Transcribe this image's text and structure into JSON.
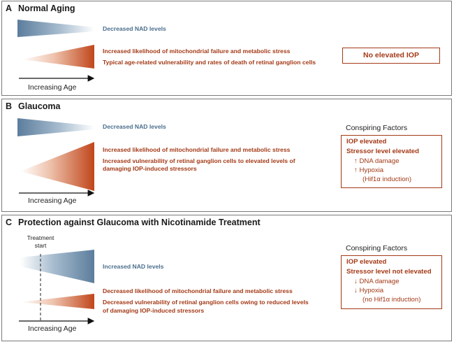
{
  "panels": [
    {
      "letter": "A",
      "title": "Normal Aging",
      "nad_text": "Decreased NAD levels",
      "stress_lines": [
        "Increased likelihood of mitochondrial failure and metabolic stress",
        "Typical age-related vulnerability and rates of death of retinal ganglion cells"
      ],
      "axis_label": "Increasing Age",
      "box_text": "No elevated IOP"
    },
    {
      "letter": "B",
      "title": "Glaucoma",
      "nad_text": "Decreased NAD levels",
      "stress_lines": [
        "Increased likelihood of mitochondrial failure and metabolic stress",
        "Increased vulnerability of retinal ganglion cells to elevated levels of",
        "damaging IOP-induced stressors"
      ],
      "axis_label": "Increasing Age",
      "factors_title": "Conspiring Factors",
      "factors": [
        "IOP elevated",
        "Stressor level elevated",
        "↑ DNA damage",
        "↑ Hypoxia",
        "(Hif1α induction)"
      ]
    },
    {
      "letter": "C",
      "title": "Protection against Glaucoma with Nicotinamide Treatment",
      "treatment_lines": [
        "Treatment",
        "start"
      ],
      "nad_text": "Increased NAD levels",
      "stress_lines": [
        "Decreased likelihood of mitochondrial failure and metabolic stress",
        "Decreased vulnerability of retinal ganglion cells owing to reduced levels",
        "of damaging IOP-induced stressors"
      ],
      "axis_label": "Increasing Age",
      "factors_title": "Conspiring Factors",
      "factors": [
        "IOP elevated",
        "Stressor level not elevated",
        "↓ DNA damage",
        "↓ Hypoxia",
        "(no Hif1α induction)"
      ]
    }
  ],
  "colors": {
    "blue": "#5b7d9c",
    "red": "#c0461b",
    "blue_text": "#4a6e8c",
    "red_text": "#a33a17"
  }
}
